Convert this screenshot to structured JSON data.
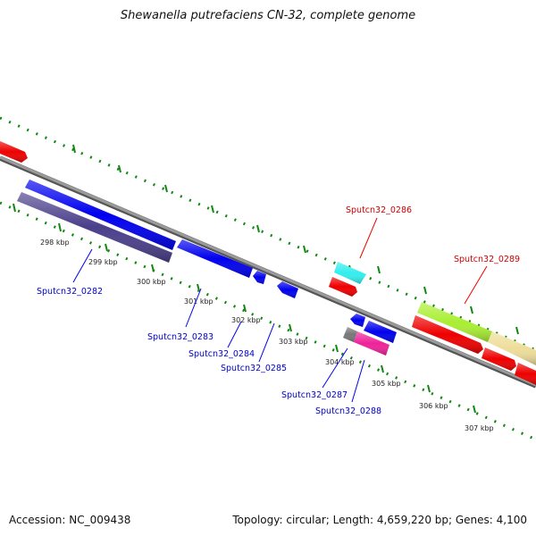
{
  "title": "Shewanella putrefaciens CN-32, complete genome",
  "footer": {
    "accession": "Accession: NC_009438",
    "summary": "Topology: circular; Length: 4,659,220 bp; Genes: 4,100"
  },
  "ticks": [
    "298 kbp",
    "299 kbp",
    "300 kbp",
    "301 kbp",
    "302 kbp",
    "303 kbp",
    "304 kbp",
    "305 kbp",
    "306 kbp",
    "307 kbp"
  ],
  "gene_labels": {
    "g0282": "Sputcn32_0282",
    "g0283": "Sputcn32_0283",
    "g0284": "Sputcn32_0284",
    "g0285": "Sputcn32_0285",
    "g0286": "Sputcn32_0286",
    "g0287": "Sputcn32_0287",
    "g0288": "Sputcn32_0288",
    "g0289": "Sputcn32_0289"
  },
  "colors": {
    "blue": "#0000ee",
    "red": "#ee0000",
    "cyan": "#33eeee",
    "green": "#aaee33",
    "khaki": "#eedd99",
    "gray": "#777777",
    "pink": "#ee2299",
    "slate": "#4a3f8a",
    "tick_green": "#118811",
    "backbone": "#888888"
  }
}
